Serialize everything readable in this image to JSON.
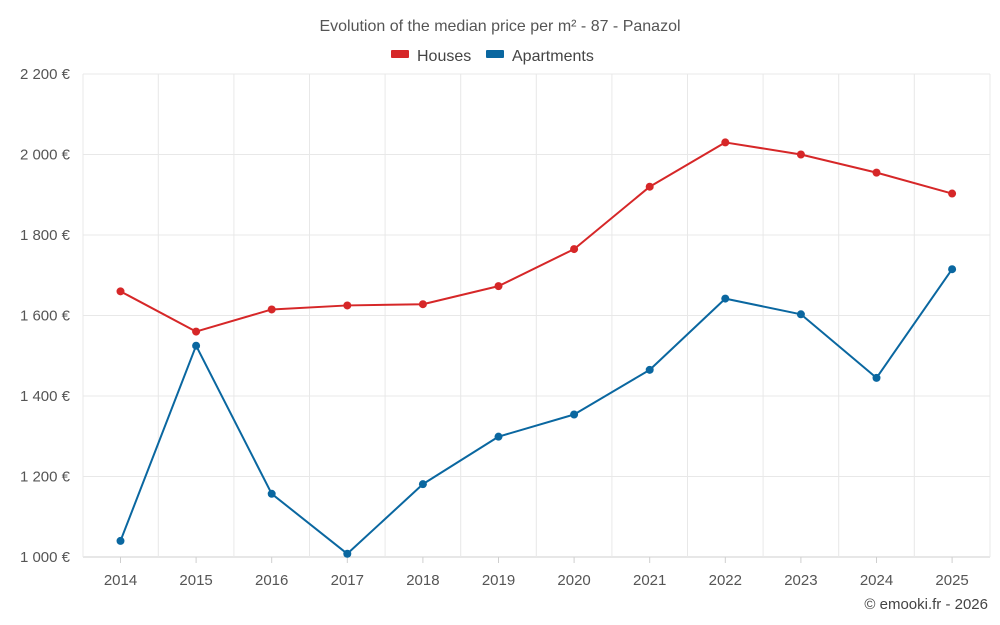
{
  "chart_data": {
    "type": "line",
    "title": "Evolution of the median price per m² - 87 - Panazol",
    "categories": [
      "2014",
      "2015",
      "2016",
      "2017",
      "2018",
      "2019",
      "2020",
      "2021",
      "2022",
      "2023",
      "2024",
      "2025"
    ],
    "series": [
      {
        "name": "Houses",
        "color": "#d62728",
        "values": [
          1660,
          1560,
          1615,
          1625,
          1628,
          1673,
          1765,
          1920,
          2030,
          2000,
          1955,
          1903
        ]
      },
      {
        "name": "Apartments",
        "color": "#0a67a0",
        "values": [
          1040,
          1525,
          1157,
          1008,
          1181,
          1299,
          1354,
          1465,
          1642,
          1603,
          1445,
          1715
        ]
      }
    ],
    "ylim": [
      1000,
      2200
    ],
    "yticks": [
      1000,
      1200,
      1400,
      1600,
      1800,
      2000,
      2200
    ],
    "ytick_labels": [
      "1 000 €",
      "1 200 €",
      "1 400 €",
      "1 600 €",
      "1 800 €",
      "2 000 €",
      "2 200 €"
    ],
    "legend_position": "top-center",
    "grid": true
  },
  "credit": "© emooki.fr - 2026"
}
